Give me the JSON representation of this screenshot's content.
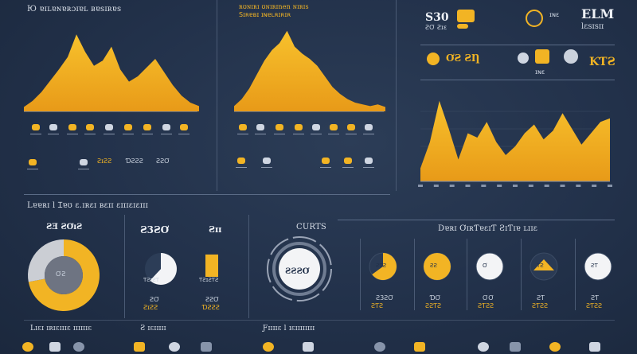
{
  "colors": {
    "background": "#22314a",
    "accent": "#f2b424",
    "accent_dark": "#e59a17",
    "text": "#cfd6e2",
    "muted": "#8794aa",
    "white": "#f3f4f6"
  },
  "header": {
    "top_left_title": "Ю ɐɪʟɐɴɐʀɔɪɐʟ ʙɐsɪʀɐs",
    "top_middle_title": "ʀʊɴɪʀɪ ʊɴɪʀɪnen ɴɪʀɪs",
    "top_middle_subtitle": "Sɪʀɐʙɪ ɪɴɐʟʀɪʀɪʀ",
    "top_right_code": "S30",
    "top_right_code_sub": "ƧƠ Ƨɪɛ",
    "brand_short": "ELM",
    "brand_sub": "lɛsɪsɪɪ",
    "kpi_left": "ƠƧ ƧȠ",
    "kpi_right": "ƘƬƧ",
    "kpi_small_caption": "ɪɴɛ"
  },
  "sections": {
    "left_heading": "Lɐɐʀɪ l Ɪɐʊ ɛ.ɪʀɛɪ ʙɛɪɪ ɛɪɪɪɛɪɛɪɪɪ",
    "left_caption": "ƧƎ ƧƠɪƧ",
    "left_caption_two": "ƧɪƧ",
    "left_caption_three": "ɪɐ",
    "middle_big_value": "Ƨ3ƧƠ",
    "middle_small_value": "Ƨɪɪ",
    "middle_heading": "CURTS",
    "middle_gauge_value": "ƧƧƧƠ",
    "right_heading": "Dɐʀɪ ƠɪʀƬɐɛɪƬ ƧɪƬɪɐ ʟɪɪɛ",
    "bottom_left_heading": "Lɪɛɪ ɪʀɪɛɪɪɪɛ ɪɪɪɪɪɪɛ",
    "bottom_mid_heading": "Ƨ ɪɛɪɪɪɪɪ",
    "bottom_right_heading": "Ƒɪɪɪɪɛ l ɪɛɪɪɪɪɪɪɪɪ",
    "legend_caption_1": "ƧɪƧƧ",
    "legend_caption_2": "ƊƧƧƧ",
    "legend_caption_3": "ƧƧƠ",
    "donut_center": "ƠƧ",
    "pie_caption": "ƬƧɪƧƬ",
    "bar_caption": "ƬƧɪƧƬƧ",
    "pie_value": "ƧƠ",
    "bar_value": "ƧƧƠ"
  },
  "small_circles": [
    {
      "label": "ƧƬƧ",
      "caption": "ƧƬƧ",
      "value": "Ƨ3ƧƠ"
    },
    {
      "label": "ƧƧ",
      "caption": "ƧƧƬƧ",
      "value": "ƊƠ"
    },
    {
      "label": "Ơ",
      "caption": "ƧƬƧƧ",
      "value": "ƠƠ"
    },
    {
      "label": "ƬƧ",
      "caption": "ƧƬƧƧ",
      "value": "ƧƬ"
    },
    {
      "label": "ƧƬ",
      "caption": "ƧƬƧƧ",
      "value": "ƧƬ"
    }
  ],
  "chart_data": [
    {
      "type": "area",
      "x": [
        0,
        1,
        2,
        3,
        4,
        5,
        6,
        7,
        8,
        9,
        10,
        11,
        12,
        13,
        14,
        15,
        16,
        17,
        18,
        19,
        20
      ],
      "values": [
        5,
        12,
        22,
        35,
        48,
        62,
        88,
        68,
        52,
        58,
        74,
        48,
        34,
        40,
        50,
        60,
        45,
        30,
        18,
        10,
        6
      ],
      "ylim": [
        0,
        100
      ],
      "grid": false
    },
    {
      "type": "area",
      "x": [
        0,
        1,
        2,
        3,
        4,
        5,
        6,
        7,
        8,
        9,
        10,
        11,
        12,
        13,
        14,
        15,
        16,
        17,
        18,
        19,
        20
      ],
      "values": [
        6,
        14,
        26,
        42,
        58,
        70,
        78,
        92,
        74,
        66,
        60,
        52,
        40,
        28,
        20,
        14,
        10,
        8,
        6,
        8,
        5
      ],
      "ylim": [
        0,
        100
      ],
      "grid": false
    },
    {
      "type": "area",
      "x": [
        0,
        1,
        2,
        3,
        4,
        5,
        6,
        7,
        8,
        9,
        10,
        11,
        12,
        13,
        14,
        15,
        16,
        17,
        18,
        19,
        20
      ],
      "values": [
        15,
        45,
        92,
        60,
        25,
        55,
        50,
        68,
        45,
        30,
        40,
        55,
        65,
        48,
        58,
        78,
        60,
        42,
        55,
        68,
        72
      ],
      "ylim": [
        0,
        100
      ],
      "grid": true
    },
    {
      "type": "pie",
      "values": [
        72,
        28
      ],
      "colors": [
        "#f2b424",
        "#cbced4"
      ]
    },
    {
      "type": "pie",
      "values": [
        62,
        38
      ],
      "colors": [
        "#f3f4f6",
        "#2c3d57"
      ]
    },
    {
      "type": "bar",
      "values": [
        78
      ],
      "ylim": [
        0,
        100
      ]
    }
  ]
}
